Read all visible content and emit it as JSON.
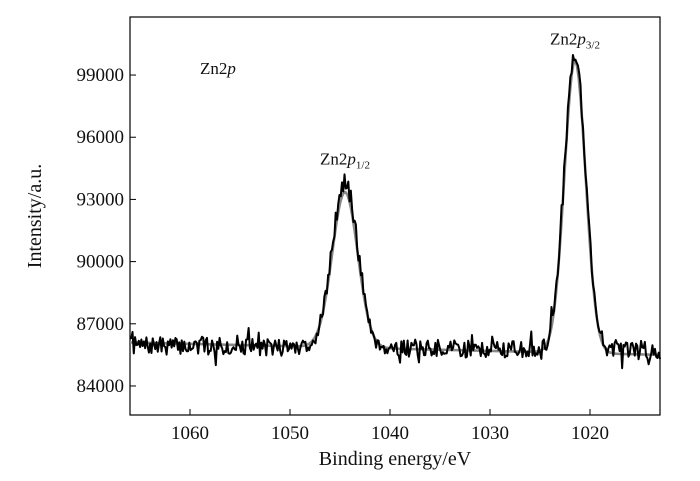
{
  "chart_data": {
    "type": "line",
    "xlabel": "Binding energy/eV",
    "ylabel": "Intensity/a.u.",
    "xlim": [
      1066,
      1013
    ],
    "ylim": [
      82600,
      101800
    ],
    "x_reversed": true,
    "x_ticks": [
      1060,
      1050,
      1040,
      1030,
      1020
    ],
    "y_ticks": [
      84000,
      87000,
      90000,
      93000,
      96000,
      99000
    ],
    "x_tick_labels": [
      "1060",
      "1050",
      "1040",
      "1030",
      "1020"
    ],
    "y_tick_labels": [
      "84000",
      "87000",
      "90000",
      "93000",
      "96000",
      "99000"
    ],
    "grid": false,
    "annotations": {
      "region": {
        "prefix": "Zn2",
        "italic": "p",
        "sub": ""
      },
      "peak_left": {
        "prefix": "Zn2",
        "italic": "p",
        "sub": "1/2",
        "x": 1044.5,
        "y": 94200
      },
      "peak_right": {
        "prefix": "Zn2",
        "italic": "p",
        "sub": "3/2",
        "x": 1021.5,
        "y": 100000
      }
    },
    "series": [
      {
        "role": "raw data",
        "color": "#000000",
        "noise_seed": 7,
        "noise_amplitude": 420,
        "baseline": {
          "x": [
            1066,
            1013
          ],
          "y": [
            85950,
            85700
          ]
        },
        "peaks": [
          {
            "center": 1044.5,
            "height": 8000,
            "fwhm": 3.0
          },
          {
            "center": 1021.5,
            "height": 14300,
            "fwhm": 2.5
          }
        ]
      },
      {
        "role": "fit",
        "color": "#888888",
        "baseline": {
          "x": [
            1066,
            1013
          ],
          "y": [
            86100,
            85500
          ]
        },
        "peaks": [
          {
            "center": 1044.5,
            "height": 7500,
            "fwhm": 3.0
          },
          {
            "center": 1021.5,
            "height": 14100,
            "fwhm": 2.5
          }
        ]
      }
    ]
  }
}
